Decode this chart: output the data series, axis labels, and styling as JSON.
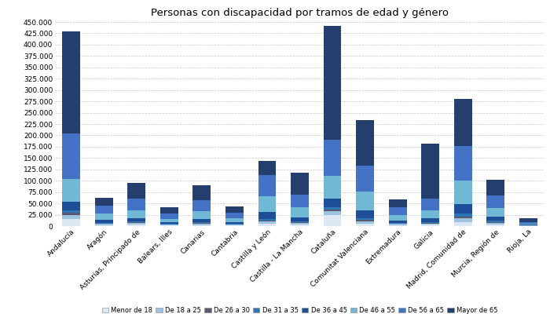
{
  "title": "Personas con discapacidad por tramos de edad y género",
  "categories": [
    "Andalucía",
    "Aragón",
    "Asturias, Principado de",
    "Balears, Illes",
    "Canarias",
    "Cantabria",
    "Castilla y León",
    "Castilla - La Mancha",
    "Cataluña",
    "Comunitat Valenciana",
    "Extremadura",
    "Galicia",
    "Madrid, Comunidad de",
    "Murcia, Región de",
    "Rioja, La"
  ],
  "age_groups": [
    "Menor de 18",
    "De 18 a 25",
    "De 26 a 30",
    "De 31 a 35",
    "De 36 a 45",
    "De 46 a 55",
    "De 56 a 65",
    "Mayor de 65"
  ],
  "colors": [
    "#dce9f5",
    "#9dc3e0",
    "#595970",
    "#2e75b6",
    "#1f4e99",
    "#70b8d4",
    "#4472c4",
    "#243f6e"
  ],
  "data": {
    "Menor de 18": [
      15000,
      2500,
      3500,
      1500,
      2500,
      1500,
      5000,
      3000,
      25000,
      5000,
      2000,
      3000,
      8000,
      4000,
      500
    ],
    "De 18 a 25": [
      10000,
      2500,
      3000,
      1500,
      3000,
      1500,
      5000,
      3500,
      8000,
      6000,
      2500,
      3000,
      9000,
      3500,
      500
    ],
    "De 26 a 30": [
      4000,
      1000,
      1500,
      700,
      1200,
      700,
      2500,
      1800,
      3500,
      3000,
      1000,
      1500,
      4500,
      1800,
      200
    ],
    "De 31 a 35": [
      5000,
      1500,
      2000,
      1000,
      1800,
      900,
      3500,
      2200,
      4500,
      4000,
      1200,
      2000,
      5500,
      2000,
      250
    ],
    "De 36 a 45": [
      20000,
      6000,
      7000,
      3500,
      7000,
      4000,
      15000,
      9000,
      20000,
      16000,
      5000,
      7000,
      22000,
      9000,
      1200
    ],
    "De 46 a 55": [
      50000,
      14000,
      18000,
      8000,
      17000,
      9000,
      35000,
      22000,
      50000,
      42000,
      13000,
      18000,
      52000,
      20000,
      2800
    ],
    "De 56 a 65": [
      100000,
      18000,
      25000,
      11000,
      24000,
      11000,
      47000,
      28000,
      80000,
      57000,
      17000,
      26000,
      75000,
      27000,
      4000
    ],
    "Mayor de 65": [
      225000,
      17000,
      35000,
      14000,
      33000,
      14000,
      30000,
      48000,
      250000,
      101000,
      18000,
      122000,
      104000,
      34000,
      7500
    ]
  },
  "ylim": [
    0,
    450000
  ],
  "yticks": [
    0,
    25000,
    50000,
    75000,
    100000,
    125000,
    150000,
    175000,
    200000,
    225000,
    250000,
    275000,
    300000,
    325000,
    350000,
    375000,
    400000,
    425000,
    450000
  ],
  "background_color": "#ffffff",
  "grid_color": "#c8c8c8",
  "figsize": [
    7.0,
    4.0
  ],
  "dpi": 100
}
